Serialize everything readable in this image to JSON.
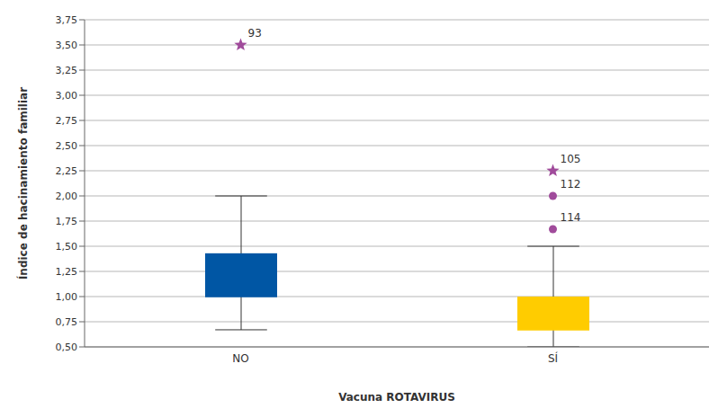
{
  "chart_data": {
    "type": "box",
    "x_label": "Vacuna ROTAVIRUS",
    "y_label": "Índice de hacinamiento familiar",
    "categories": [
      "NO",
      "SÍ"
    ],
    "colors": [
      "#0056a4",
      "#ffcc00"
    ],
    "boxes": [
      {
        "min": 0.67,
        "q1": 1.0,
        "median": 1.0,
        "q3": 1.43,
        "max": 2.0
      },
      {
        "min": 0.5,
        "q1": 0.67,
        "median": 0.67,
        "q3": 1.0,
        "max": 1.5
      }
    ],
    "outliers": [
      {
        "category": "NO",
        "value": 3.5,
        "label": "93",
        "marker": "star",
        "color": "#a04b9b"
      },
      {
        "category": "SÍ",
        "value": 2.25,
        "label": "105",
        "marker": "star",
        "color": "#a04b9b"
      },
      {
        "category": "SÍ",
        "value": 2.0,
        "label": "112",
        "marker": "circle",
        "color": "#a04b9b"
      },
      {
        "category": "SÍ",
        "value": 1.67,
        "label": "114",
        "marker": "circle",
        "color": "#a04b9b"
      }
    ],
    "ylim": [
      0.5,
      3.75
    ],
    "yticks": [
      {
        "value": 0.5,
        "label": "0,50"
      },
      {
        "value": 0.75,
        "label": "0,75"
      },
      {
        "value": 1.0,
        "label": "1,00"
      },
      {
        "value": 1.25,
        "label": "1,25"
      },
      {
        "value": 1.5,
        "label": "1,50"
      },
      {
        "value": 1.75,
        "label": "1,75"
      },
      {
        "value": 2.0,
        "label": "2,00"
      },
      {
        "value": 2.25,
        "label": "2,25"
      },
      {
        "value": 2.5,
        "label": "2,50"
      },
      {
        "value": 2.75,
        "label": "2,75"
      },
      {
        "value": 3.0,
        "label": "3,00"
      },
      {
        "value": 3.25,
        "label": "3,25"
      },
      {
        "value": 3.5,
        "label": "3,50"
      },
      {
        "value": 3.75,
        "label": "3,75"
      }
    ],
    "grid": true
  }
}
